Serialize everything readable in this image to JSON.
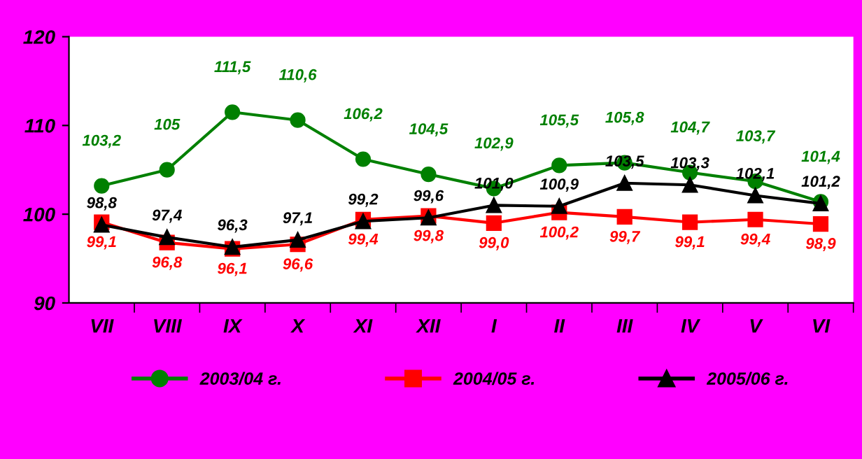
{
  "chart_data": {
    "type": "line",
    "categories": [
      "VII",
      "VIII",
      "IX",
      "X",
      "XI",
      "XII",
      "I",
      "II",
      "III",
      "IV",
      "V",
      "VI"
    ],
    "series": [
      {
        "name": "2003/04 г.",
        "color": "#008000",
        "marker": "circle",
        "values": [
          103.2,
          105,
          111.5,
          110.6,
          106.2,
          104.5,
          102.9,
          105.5,
          105.8,
          104.7,
          103.7,
          101.4
        ],
        "value_labels": [
          "103,2",
          "105",
          "111,5",
          "110,6",
          "106,2",
          "104,5",
          "102,9",
          "105,5",
          "105,8",
          "104,7",
          "103,7",
          "101,4"
        ]
      },
      {
        "name": "2004/05 г.",
        "color": "#ff0000",
        "marker": "square",
        "values": [
          99.1,
          96.8,
          96.1,
          96.6,
          99.4,
          99.8,
          99.0,
          100.2,
          99.7,
          99.1,
          99.4,
          98.9
        ],
        "value_labels": [
          "99,1",
          "96,8",
          "96,1",
          "96,6",
          "99,4",
          "99,8",
          "99,0",
          "100,2",
          "99,7",
          "99,1",
          "99,4",
          "98,9"
        ]
      },
      {
        "name": "2005/06 г.",
        "color": "#000000",
        "marker": "triangle",
        "values": [
          98.8,
          97.4,
          96.3,
          97.1,
          99.2,
          99.6,
          101.0,
          100.9,
          103.5,
          103.3,
          102.1,
          101.2
        ],
        "value_labels": [
          "98,8",
          "97,4",
          "96,3",
          "97,1",
          "99,2",
          "99,6",
          "101,0",
          "100,9",
          "103,5",
          "103,3",
          "102,1",
          "101,2"
        ]
      }
    ],
    "ylim": [
      90,
      120
    ],
    "yticks": [
      90,
      100,
      110,
      120
    ],
    "grid": false,
    "legend": "bottom"
  }
}
